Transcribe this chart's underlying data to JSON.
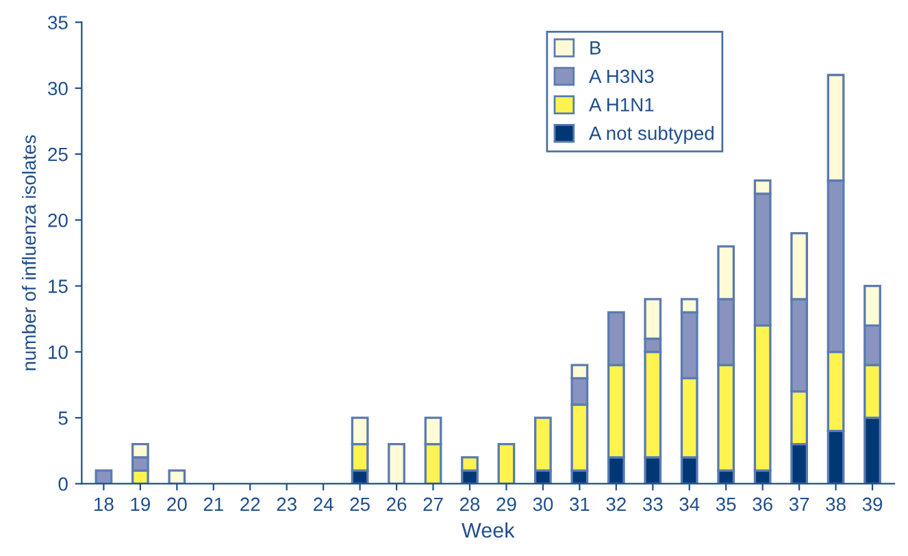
{
  "chart_data": {
    "type": "bar",
    "stacked": true,
    "xlabel": "Week",
    "ylabel": "number of influenza isolates",
    "categories": [
      "18",
      "19",
      "20",
      "21",
      "22",
      "23",
      "24",
      "25",
      "26",
      "27",
      "28",
      "29",
      "30",
      "31",
      "32",
      "33",
      "34",
      "35",
      "36",
      "37",
      "38",
      "39"
    ],
    "series": [
      {
        "name": "A not subtyped",
        "color": "#003876",
        "values": [
          0,
          0,
          0,
          0,
          0,
          0,
          0,
          1,
          0,
          0,
          1,
          0,
          1,
          1,
          2,
          2,
          2,
          1,
          1,
          3,
          4,
          5
        ]
      },
      {
        "name": "A H1N1",
        "color": "#fff44f",
        "values": [
          0,
          1,
          0,
          0,
          0,
          0,
          0,
          2,
          0,
          3,
          1,
          3,
          4,
          5,
          7,
          8,
          6,
          8,
          11,
          4,
          6,
          4
        ]
      },
      {
        "name": "A H3N3",
        "color": "#8894bf",
        "values": [
          1,
          1,
          0,
          0,
          0,
          0,
          0,
          0,
          0,
          0,
          0,
          0,
          0,
          2,
          4,
          1,
          5,
          5,
          10,
          7,
          13,
          3
        ]
      },
      {
        "name": "B",
        "color": "#fffbd6",
        "values": [
          0,
          1,
          1,
          0,
          0,
          0,
          0,
          2,
          3,
          2,
          0,
          0,
          0,
          1,
          0,
          3,
          1,
          4,
          1,
          5,
          8,
          3
        ]
      }
    ],
    "ylim": [
      0,
      35
    ],
    "yticks": [
      0,
      5,
      10,
      15,
      20,
      25,
      30,
      35
    ],
    "grid": false,
    "legend": "top right"
  }
}
